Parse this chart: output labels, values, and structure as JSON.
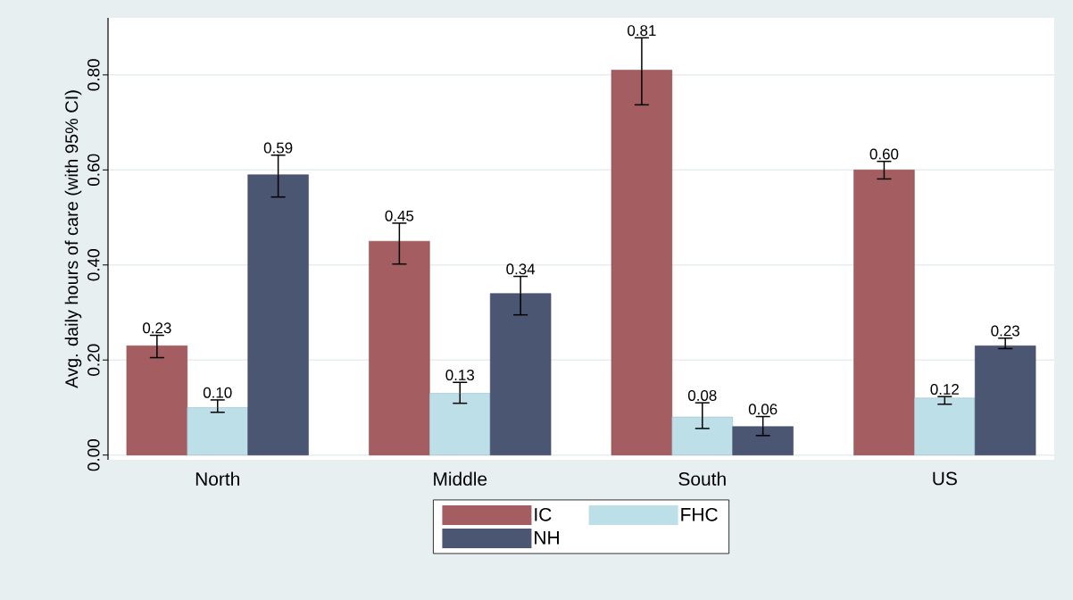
{
  "chart_data": {
    "type": "bar",
    "ylabel": "Avg. daily hours of care (with 95% CI)",
    "categories": [
      "North",
      "Middle",
      "South",
      "US"
    ],
    "series": [
      {
        "name": "IC",
        "color": "#a45d60",
        "values": [
          0.23,
          0.45,
          0.81,
          0.6
        ],
        "value_labels": [
          "0.23",
          "0.45",
          "0.81",
          "0.60"
        ],
        "errors": [
          [
            0.205,
            0.252
          ],
          [
            0.402,
            0.488
          ],
          [
            0.737,
            0.878
          ],
          [
            0.581,
            0.618
          ]
        ]
      },
      {
        "name": "FHC",
        "color": "#bcdfe8",
        "values": [
          0.1,
          0.13,
          0.08,
          0.12
        ],
        "value_labels": [
          "0.10",
          "0.13",
          "0.08",
          "0.12"
        ],
        "errors": [
          [
            0.09,
            0.116
          ],
          [
            0.109,
            0.153
          ],
          [
            0.056,
            0.11
          ],
          [
            0.107,
            0.123
          ]
        ]
      },
      {
        "name": "NH",
        "color": "#4b5673",
        "values": [
          0.59,
          0.34,
          0.06,
          0.23
        ],
        "value_labels": [
          "0.59",
          "0.34",
          "0.06",
          "0.23"
        ],
        "errors": [
          [
            0.543,
            0.631
          ],
          [
            0.295,
            0.376
          ],
          [
            0.041,
            0.081
          ],
          [
            0.224,
            0.246
          ]
        ]
      }
    ],
    "ylim": [
      -0.01,
      0.92
    ],
    "yticks": [
      {
        "value": 0,
        "label": "0.00"
      },
      {
        "value": 0.2,
        "label": "0.20"
      },
      {
        "value": 0.4,
        "label": "0.40"
      },
      {
        "value": 0.6,
        "label": "0.60"
      },
      {
        "value": 0.8,
        "label": "0.80"
      }
    ],
    "grid": "y",
    "legend": "bottom"
  }
}
